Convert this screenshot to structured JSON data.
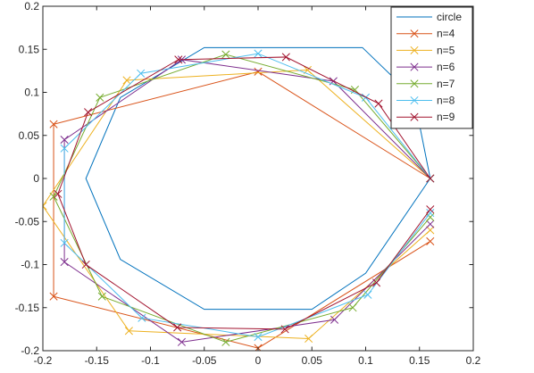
{
  "chart_data": {
    "type": "line",
    "title": "",
    "xlabel": "",
    "ylabel": "",
    "xlim": [
      -0.2,
      0.2
    ],
    "ylim": [
      -0.2,
      0.2
    ],
    "x_ticks": [
      "-0.2",
      "-0.15",
      "-0.1",
      "-0.05",
      "0",
      "0.05",
      "0.1",
      "0.15",
      "0.2"
    ],
    "y_ticks": [
      "-0.2",
      "-0.15",
      "-0.1",
      "-0.05",
      "0",
      "0.05",
      "0.1",
      "0.15",
      "0.2"
    ],
    "grid": false,
    "legend_position": "top-right",
    "series": [
      {
        "name": "circle",
        "color": "#0072BD",
        "marker": "none",
        "points": [
          [
            0.16,
            0.0
          ],
          [
            0.145,
            0.094
          ],
          [
            0.097,
            0.152
          ],
          [
            0.0,
            0.152
          ],
          [
            -0.05,
            0.152
          ],
          [
            -0.128,
            0.094
          ],
          [
            -0.16,
            0.0
          ],
          [
            -0.128,
            -0.094
          ],
          [
            -0.05,
            -0.152
          ],
          [
            0.05,
            -0.152
          ],
          [
            0.1,
            -0.11
          ],
          [
            0.16,
            0.0
          ]
        ]
      },
      {
        "name": "n=4",
        "color": "#D95319",
        "marker": "x",
        "points": [
          [
            0.16,
            0.0
          ],
          [
            0.0,
            0.124
          ],
          [
            -0.19,
            0.063
          ],
          [
            -0.19,
            -0.137
          ],
          [
            0.0,
            -0.197
          ],
          [
            0.16,
            -0.073
          ]
        ]
      },
      {
        "name": "n=5",
        "color": "#EDB120",
        "marker": "x",
        "points": [
          [
            0.16,
            0.0
          ],
          [
            0.046,
            0.126
          ],
          [
            -0.122,
            0.114
          ],
          [
            -0.2,
            -0.032
          ],
          [
            -0.12,
            -0.177
          ],
          [
            0.047,
            -0.186
          ],
          [
            0.16,
            -0.06
          ]
        ]
      },
      {
        "name": "n=6",
        "color": "#7E2F8E",
        "marker": "x",
        "points": [
          [
            0.16,
            0.0
          ],
          [
            0.07,
            0.113
          ],
          [
            -0.071,
            0.138
          ],
          [
            -0.18,
            0.045
          ],
          [
            -0.18,
            -0.097
          ],
          [
            -0.071,
            -0.19
          ],
          [
            0.071,
            -0.164
          ],
          [
            0.16,
            -0.053
          ]
        ]
      },
      {
        "name": "n=7",
        "color": "#77AC30",
        "marker": "x",
        "points": [
          [
            0.16,
            0.0
          ],
          [
            0.09,
            0.103
          ],
          [
            -0.03,
            0.144
          ],
          [
            -0.147,
            0.094
          ],
          [
            -0.19,
            -0.021
          ],
          [
            -0.145,
            -0.137
          ],
          [
            -0.03,
            -0.19
          ],
          [
            0.088,
            -0.15
          ],
          [
            0.16,
            -0.045
          ]
        ]
      },
      {
        "name": "n=8",
        "color": "#4DBEEE",
        "marker": "x",
        "points": [
          [
            0.16,
            0.0
          ],
          [
            0.1,
            0.094
          ],
          [
            0.0,
            0.145
          ],
          [
            -0.109,
            0.122
          ],
          [
            -0.18,
            0.035
          ],
          [
            -0.18,
            -0.075
          ],
          [
            -0.108,
            -0.162
          ],
          [
            0.0,
            -0.184
          ],
          [
            0.102,
            -0.135
          ],
          [
            0.16,
            -0.04
          ]
        ]
      },
      {
        "name": "n=9",
        "color": "#A2142F",
        "marker": "x",
        "points": [
          [
            0.16,
            0.0
          ],
          [
            0.112,
            0.087
          ],
          [
            0.026,
            0.141
          ],
          [
            -0.074,
            0.138
          ],
          [
            -0.158,
            0.077
          ],
          [
            -0.186,
            -0.018
          ],
          [
            -0.16,
            -0.1
          ],
          [
            -0.075,
            -0.173
          ],
          [
            0.025,
            -0.175
          ],
          [
            0.11,
            -0.121
          ],
          [
            0.16,
            -0.036
          ]
        ]
      }
    ]
  }
}
